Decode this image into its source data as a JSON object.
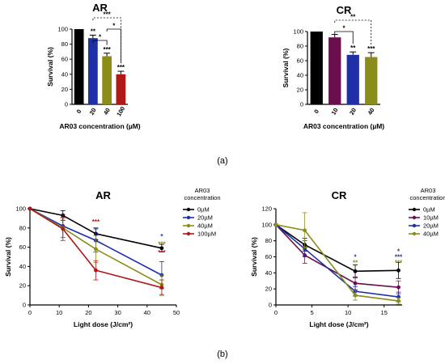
{
  "panel_labels": {
    "a": "(a)",
    "b": "(b)"
  },
  "chart_data": [
    {
      "type": "bar",
      "title": "AR",
      "xlabel": "AR03 concentration (µM)",
      "ylabel": "Survival (%)",
      "ylim": [
        0,
        100
      ],
      "yticks": [
        "0",
        "20",
        "40",
        "60",
        "80",
        "100"
      ],
      "categories": [
        "0",
        "20",
        "40",
        "100"
      ],
      "values": [
        100,
        88,
        64,
        40
      ],
      "errors": [
        0,
        4,
        4,
        4
      ],
      "colors": [
        "#000000",
        "#1f2fa8",
        "#8c8c1a",
        "#b01818"
      ],
      "bar_stars": [
        "",
        "**",
        "***",
        "***"
      ],
      "brackets": [
        {
          "from": 1,
          "to": 2,
          "label": "*"
        },
        {
          "from": 2,
          "to": 3,
          "label": "*"
        },
        {
          "from": 1,
          "to": 3,
          "label": "***"
        }
      ]
    },
    {
      "type": "bar",
      "title": "CR",
      "xlabel": "AR03 concentration (µM)",
      "ylabel": "Survival (%)",
      "ylim": [
        0,
        100
      ],
      "yticks": [
        "0",
        "20",
        "40",
        "60",
        "80",
        "100"
      ],
      "categories": [
        "0",
        "10",
        "20",
        "40"
      ],
      "values": [
        100,
        92,
        68,
        65
      ],
      "errors": [
        0,
        4,
        4,
        6
      ],
      "colors": [
        "#000000",
        "#6a0f4e",
        "#1f2fa8",
        "#8c8c1a"
      ],
      "bar_stars": [
        "",
        "",
        "**",
        "***"
      ],
      "brackets": [
        {
          "from": 1,
          "to": 2,
          "label": "*"
        },
        {
          "from": 1,
          "to": 3,
          "label": "**"
        }
      ]
    },
    {
      "type": "line",
      "title": "AR",
      "xlabel": "Light dose (J/cm²)",
      "ylabel": "Survival (%)",
      "xlim": [
        0,
        50
      ],
      "ylim": [
        0,
        100
      ],
      "xticks": [
        "0",
        "10",
        "20",
        "30",
        "40",
        "50"
      ],
      "yticks": [
        "0",
        "20",
        "40",
        "60",
        "80",
        "100"
      ],
      "x": [
        0,
        11.25,
        22.5,
        45
      ],
      "legend_title": "AR03\nconcentration",
      "series": [
        {
          "name": "0µM",
          "color": "#000000",
          "values": [
            100,
            93,
            74,
            59
          ],
          "errors": [
            0,
            5,
            6,
            4
          ]
        },
        {
          "name": "20µM",
          "color": "#1f2fa8",
          "values": [
            100,
            82,
            67,
            31
          ],
          "errors": [
            0,
            12,
            12,
            14
          ]
        },
        {
          "name": "40µM",
          "color": "#8c8c1a",
          "values": [
            100,
            80,
            58,
            21
          ],
          "errors": [
            0,
            10,
            14,
            10
          ]
        },
        {
          "name": "100µM",
          "color": "#b01818",
          "values": [
            100,
            79,
            36,
            18
          ],
          "errors": [
            0,
            12,
            10,
            8
          ]
        }
      ],
      "annotations": [
        {
          "x": 22.5,
          "y_data": 84,
          "text": "***",
          "color": "#b01818"
        },
        {
          "x": 45,
          "y_data": 69,
          "text": "*",
          "color": "#1f2fa8"
        },
        {
          "x": 45,
          "y_data": 61,
          "text": "***",
          "color": "#8c8c1a"
        },
        {
          "x": 45,
          "y_data": 52,
          "text": "***",
          "color": "#b01818"
        }
      ]
    },
    {
      "type": "line",
      "title": "CR",
      "xlabel": "Light dose (J/cm²)",
      "ylabel": "Survival (%)",
      "xlim": [
        0,
        17.5
      ],
      "ylim": [
        0,
        120
      ],
      "xticks": [
        "0",
        "5",
        "10",
        "15"
      ],
      "yticks": [
        "0",
        "20",
        "40",
        "60",
        "80",
        "100",
        "120"
      ],
      "x": [
        0,
        4,
        11,
        17
      ],
      "legend_title": "AR03\nconcentration",
      "series": [
        {
          "name": "0µM",
          "color": "#000000",
          "values": [
            100,
            75,
            42,
            43
          ],
          "errors": [
            0,
            8,
            8,
            10
          ]
        },
        {
          "name": "10µM",
          "color": "#6a0f4e",
          "values": [
            100,
            62,
            27,
            22
          ],
          "errors": [
            0,
            10,
            8,
            8
          ]
        },
        {
          "name": "20µM",
          "color": "#1f2fa8",
          "values": [
            100,
            70,
            17,
            10
          ],
          "errors": [
            0,
            10,
            6,
            6
          ]
        },
        {
          "name": "40µM",
          "color": "#8c8c1a",
          "values": [
            100,
            93,
            12,
            5
          ],
          "errors": [
            0,
            22,
            6,
            4
          ]
        }
      ],
      "annotations": [
        {
          "x": 11,
          "y_data": 57,
          "text": "*",
          "color": "#1f2fa8"
        },
        {
          "x": 11,
          "y_data": 50,
          "text": "**",
          "color": "#8c8c1a"
        },
        {
          "x": 17,
          "y_data": 64,
          "text": "*",
          "color": "#6a0f4e"
        },
        {
          "x": 17,
          "y_data": 57,
          "text": "***",
          "color": "#1f2fa8"
        },
        {
          "x": 17,
          "y_data": 50,
          "text": "***",
          "color": "#8c8c1a"
        }
      ]
    }
  ]
}
